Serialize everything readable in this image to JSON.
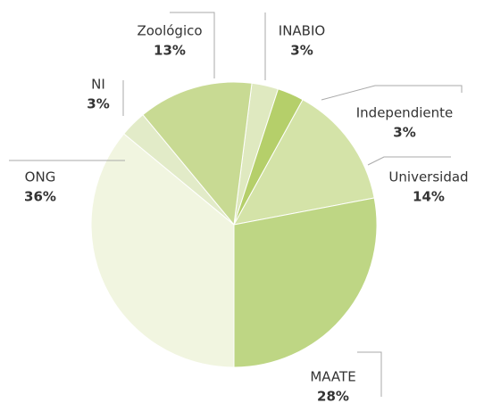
{
  "chart_data": {
    "type": "pie",
    "categories": [
      "INABIO",
      "Independiente",
      "Universidad",
      "MAATE",
      "ONG",
      "NI",
      "Zoológico"
    ],
    "values": [
      3,
      3,
      14,
      28,
      36,
      3,
      13
    ],
    "value_labels": [
      "3%",
      "3%",
      "14%",
      "28%",
      "36%",
      "3%",
      "13%"
    ],
    "colors": [
      "#dfe9c0",
      "#b5cf6a",
      "#d4e3a8",
      "#bed684",
      "#f1f5e0",
      "#e2ebc8",
      "#c8da93"
    ]
  }
}
